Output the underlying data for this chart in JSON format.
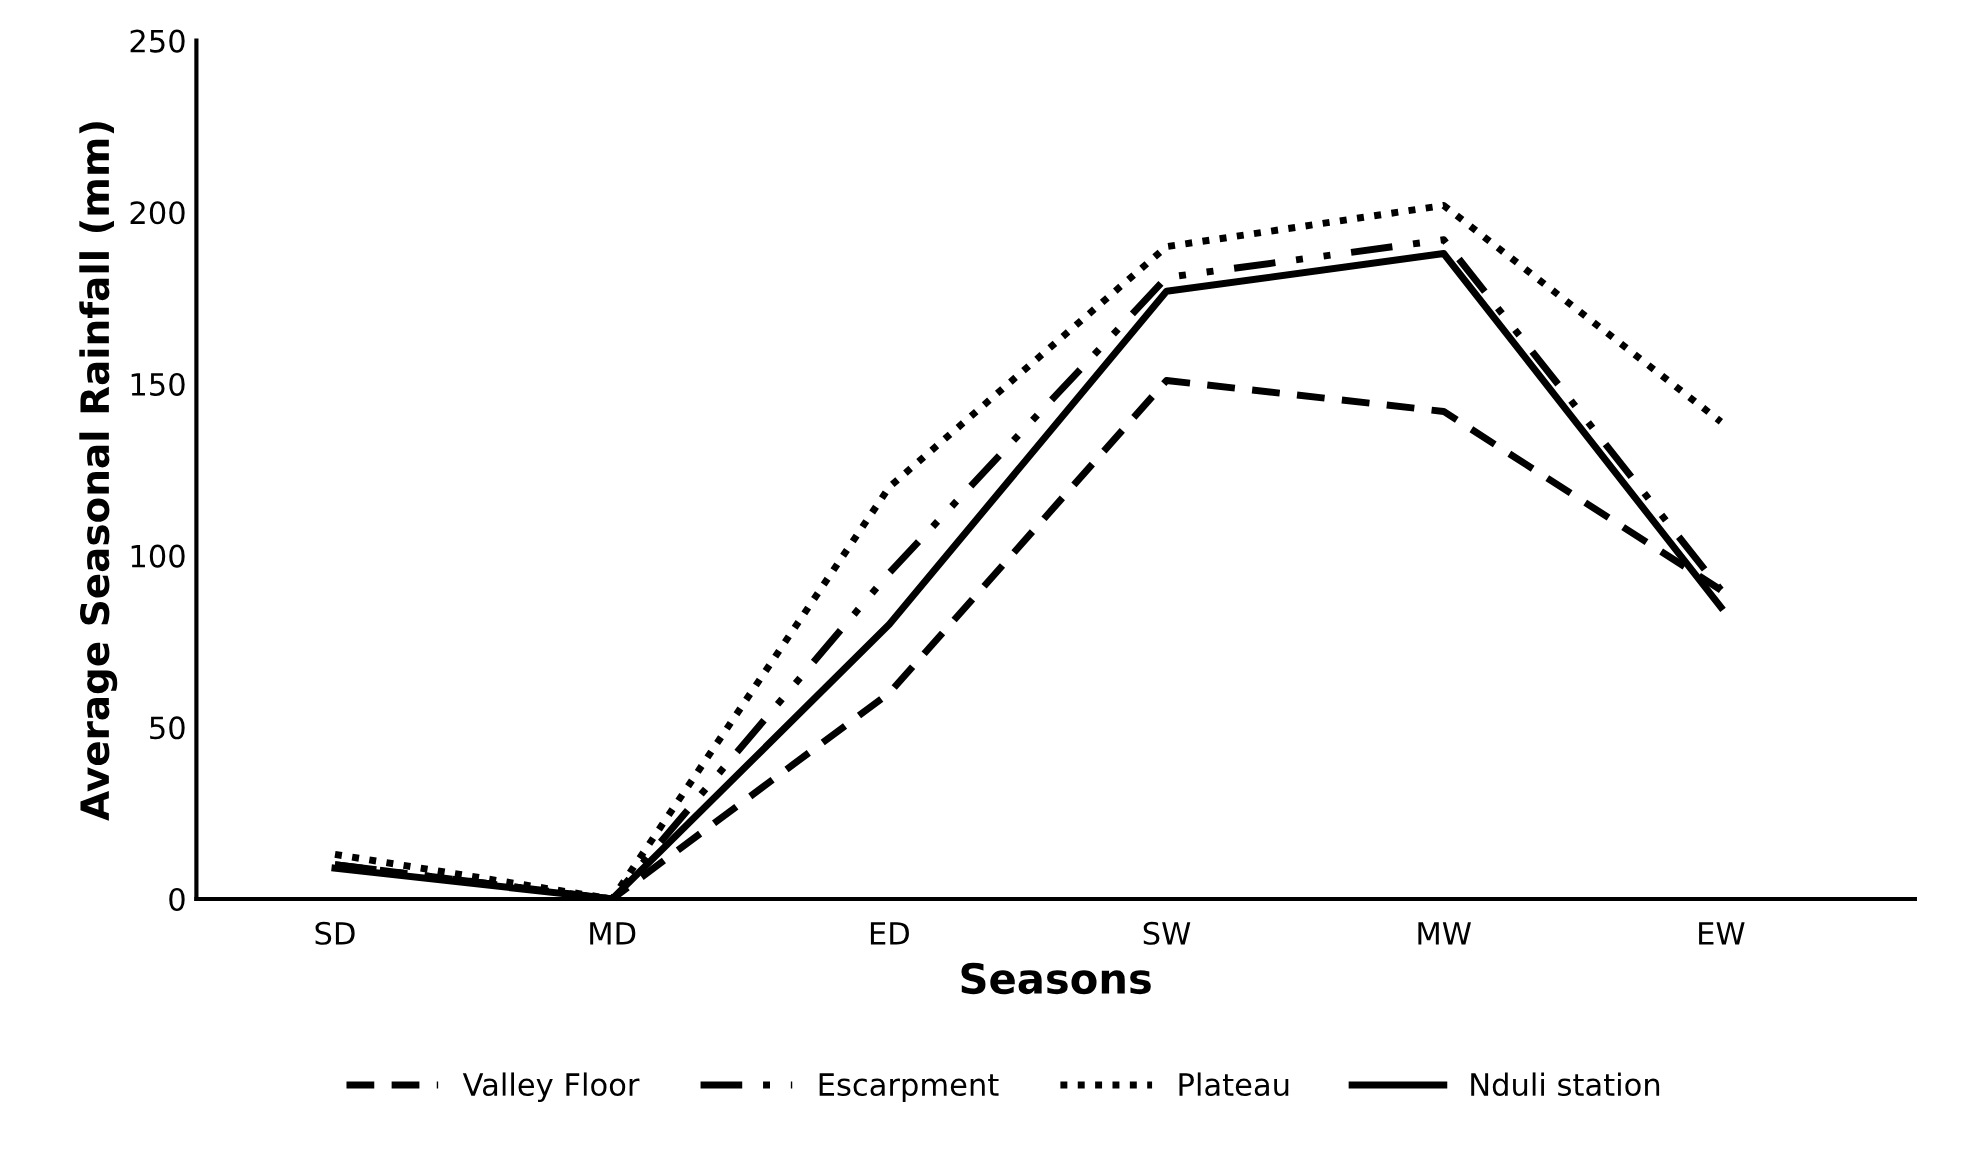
{
  "chart_data": {
    "type": "line",
    "xlabel": "Seasons",
    "ylabel": "Average Seasonal Rainfall (mm)",
    "categories": [
      "SD",
      "MD",
      "ED",
      "SW",
      "MW",
      "EW"
    ],
    "ylim": [
      0,
      250
    ],
    "yticks": [
      0,
      50,
      100,
      150,
      200,
      250
    ],
    "grid": false,
    "legend": "bottom",
    "marker": "none",
    "series": [
      {
        "name": "Valley Floor",
        "color": "#000000",
        "line_style": "dashed",
        "values": [
          10,
          0,
          60,
          151,
          142,
          90
        ]
      },
      {
        "name": "Escarpment",
        "color": "#000000",
        "line_style": "dashdot",
        "values": [
          10,
          0,
          95,
          181,
          192,
          90
        ]
      },
      {
        "name": "Plateau",
        "color": "#000000",
        "line_style": "dotted",
        "values": [
          13,
          0,
          120,
          190,
          202,
          139
        ]
      },
      {
        "name": "Nduli station",
        "color": "#000000",
        "line_style": "solid",
        "values": [
          9,
          0,
          80,
          177,
          188,
          85
        ]
      }
    ]
  }
}
